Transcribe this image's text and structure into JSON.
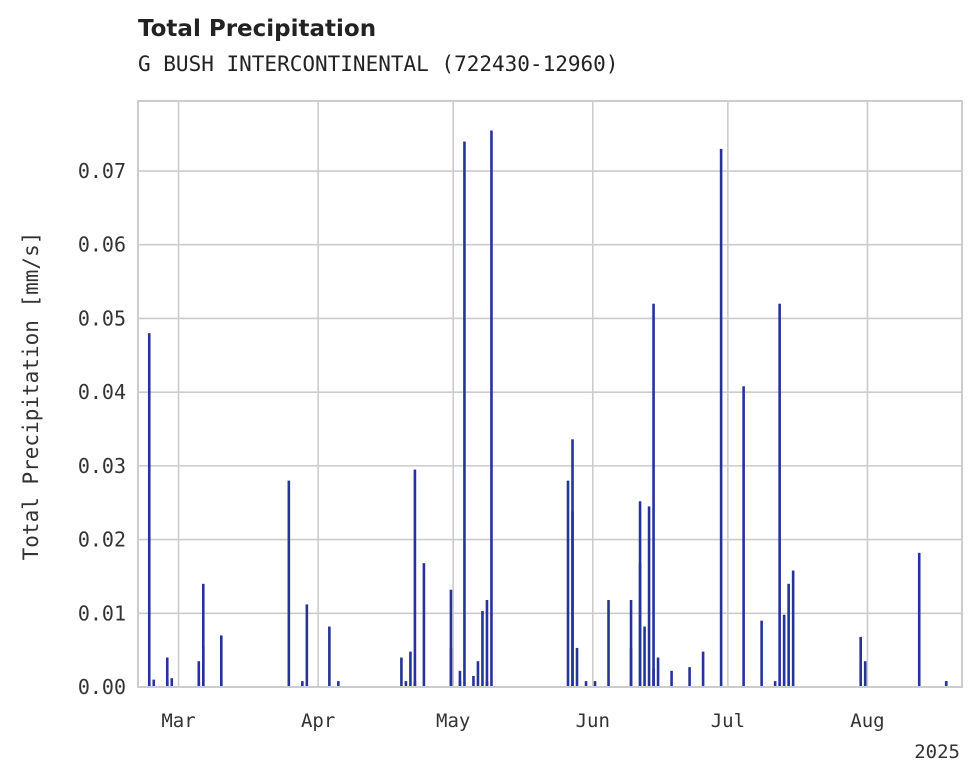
{
  "chart_data": {
    "type": "bar",
    "title": "Total Precipitation",
    "subtitle": "G BUSH INTERCONTINENTAL (722430-12960)",
    "xlabel": "",
    "ylabel": "Total Precipitation [mm/s]",
    "xlim": [
      "2025-02-20",
      "2025-08-22"
    ],
    "ylim": [
      0,
      0.0795
    ],
    "grid": true,
    "legend": "none",
    "bar_color": "#26339a",
    "x_ticks": [
      {
        "date": "2025-03-01",
        "label": "Mar"
      },
      {
        "date": "2025-04-01",
        "label": "Apr"
      },
      {
        "date": "2025-05-01",
        "label": "May"
      },
      {
        "date": "2025-06-01",
        "label": "Jun"
      },
      {
        "date": "2025-07-01",
        "label": "Jul"
      },
      {
        "date": "2025-08-01",
        "label": "Aug"
      }
    ],
    "x_year_label": "2025",
    "y_ticks": [
      {
        "value": 0,
        "label": "0.00"
      },
      {
        "value": 0.01,
        "label": "0.01"
      },
      {
        "value": 0.02,
        "label": "0.02"
      },
      {
        "value": 0.03,
        "label": "0.03"
      },
      {
        "value": 0.04,
        "label": "0.04"
      },
      {
        "value": 0.05,
        "label": "0.05"
      },
      {
        "value": 0.06,
        "label": "0.06"
      },
      {
        "value": 0.07,
        "label": "0.07"
      }
    ],
    "x": [
      "2025-02-22",
      "2025-02-22",
      "2025-02-23",
      "2025-02-26",
      "2025-02-26",
      "2025-02-27",
      "2025-03-05",
      "2025-03-05",
      "2025-03-06",
      "2025-03-06",
      "2025-03-10",
      "2025-03-10",
      "2025-03-25",
      "2025-03-28",
      "2025-03-29",
      "2025-04-03",
      "2025-04-05",
      "2025-04-19",
      "2025-04-20",
      "2025-04-21",
      "2025-04-22",
      "2025-04-22",
      "2025-04-24",
      "2025-04-30",
      "2025-04-30",
      "2025-05-02",
      "2025-05-02",
      "2025-05-03",
      "2025-05-05",
      "2025-05-06",
      "2025-05-07",
      "2025-05-08",
      "2025-05-08",
      "2025-05-09",
      "2025-05-26",
      "2025-05-27",
      "2025-05-27",
      "2025-05-28",
      "2025-05-30",
      "2025-06-01",
      "2025-06-04",
      "2025-06-09",
      "2025-06-09",
      "2025-06-11",
      "2025-06-11",
      "2025-06-12",
      "2025-06-13",
      "2025-06-14",
      "2025-06-14",
      "2025-06-15",
      "2025-06-18",
      "2025-06-22",
      "2025-06-25",
      "2025-06-29",
      "2025-07-04",
      "2025-07-08",
      "2025-07-11",
      "2025-07-12",
      "2025-07-13",
      "2025-07-14",
      "2025-07-15",
      "2025-07-30",
      "2025-07-31",
      "2025-08-12",
      "2025-08-18",
      "2025-08-18"
    ],
    "values": [
      0.0008,
      0.048,
      0.001,
      0.001,
      0.004,
      0.0012,
      0.0008,
      0.0035,
      0.0055,
      0.014,
      0.007,
      0.0008,
      0.028,
      0.0008,
      0.0112,
      0.0082,
      0.0008,
      0.004,
      0.0008,
      0.0048,
      0.0295,
      0.0008,
      0.0168,
      0.0132,
      0.0053,
      0.0008,
      0.0022,
      0.074,
      0.0015,
      0.0035,
      0.0103,
      0.0118,
      0.0008,
      0.0755,
      0.028,
      0.0336,
      0.0238,
      0.0053,
      0.0008,
      0.0008,
      0.0118,
      0.0118,
      0.0053,
      0.0252,
      0.0168,
      0.0082,
      0.0245,
      0.052,
      0.0025,
      0.004,
      0.0022,
      0.0027,
      0.0048,
      0.073,
      0.0408,
      0.009,
      0.0008,
      0.052,
      0.0098,
      0.014,
      0.0158,
      0.0068,
      0.0035,
      0.0182,
      0.0008,
      0.0008
    ]
  }
}
